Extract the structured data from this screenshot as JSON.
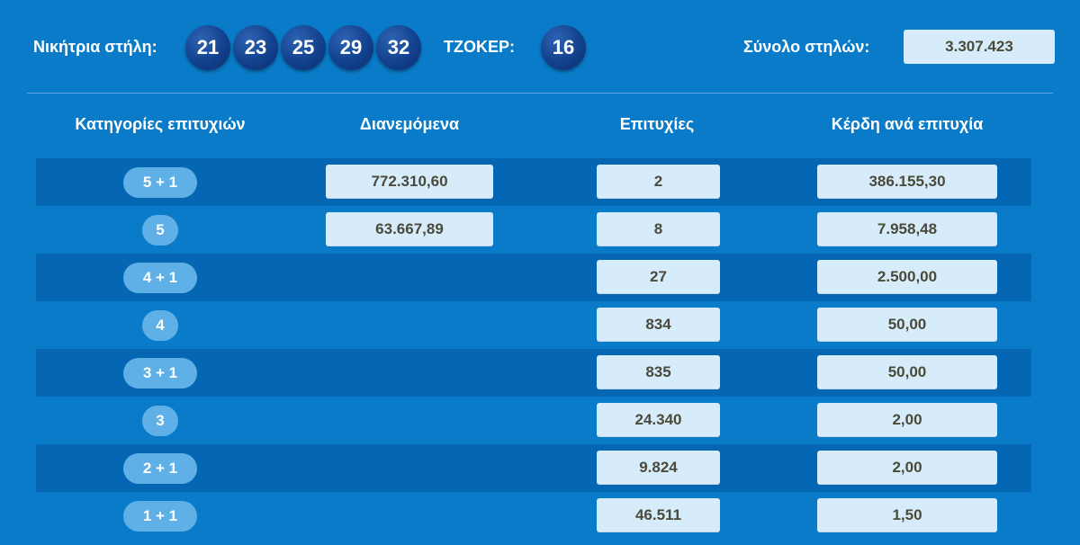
{
  "header": {
    "winning_label": "Νικήτρια στήλη:",
    "numbers": [
      "21",
      "23",
      "25",
      "29",
      "32"
    ],
    "joker_label": "ΤΖΟΚΕΡ:",
    "joker_number": "16",
    "total_label": "Σύνολο στηλών:",
    "total_value": "3.307.423"
  },
  "table": {
    "columns": [
      "Κατηγορίες επιτυχιών",
      "Διανεμόμενα",
      "Επιτυχίες",
      "Κέρδη ανά επιτυχία"
    ],
    "rows": [
      {
        "category": "5 + 1",
        "distributed": "772.310,60",
        "winners": "2",
        "prize": "386.155,30"
      },
      {
        "category": "5",
        "distributed": "63.667,89",
        "winners": "8",
        "prize": "7.958,48"
      },
      {
        "category": "4 + 1",
        "distributed": "",
        "winners": "27",
        "prize": "2.500,00"
      },
      {
        "category": "4",
        "distributed": "",
        "winners": "834",
        "prize": "50,00"
      },
      {
        "category": "3 + 1",
        "distributed": "",
        "winners": "835",
        "prize": "50,00"
      },
      {
        "category": "3",
        "distributed": "",
        "winners": "24.340",
        "prize": "2,00"
      },
      {
        "category": "2 + 1",
        "distributed": "",
        "winners": "9.824",
        "prize": "2,00"
      },
      {
        "category": "1 + 1",
        "distributed": "",
        "winners": "46.511",
        "prize": "1,50"
      }
    ]
  },
  "colors": {
    "background": "#0a7bc8",
    "row_stripe": "#0566b3",
    "ball": "#12418d",
    "value_box": "#d7ecfb",
    "category_pill": "#5fb0e6"
  }
}
